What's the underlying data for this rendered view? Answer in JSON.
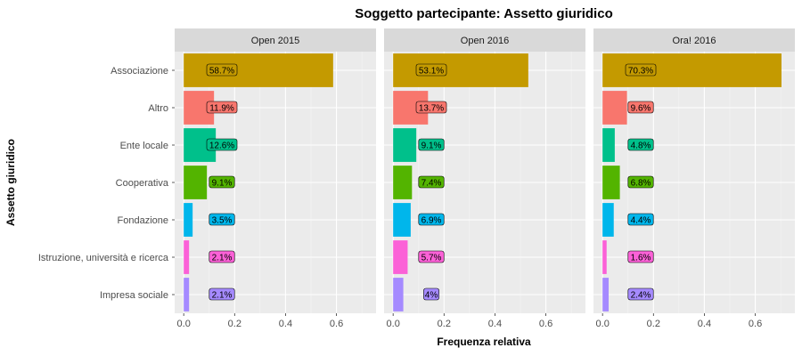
{
  "chart_data": {
    "type": "bar",
    "orientation": "horizontal",
    "title": "Soggetto partecipante: Assetto giuridico",
    "xlabel": "Frequenza relativa",
    "ylabel": "Assetto giuridico",
    "xlim": [
      0,
      0.72
    ],
    "x_ticks": [
      "0.0",
      "0.2",
      "0.4",
      "0.6"
    ],
    "x_tick_values": [
      0,
      0.2,
      0.4,
      0.6
    ],
    "grid": true,
    "legend": "none",
    "categories": [
      "Associazione",
      "Altro",
      "Ente locale",
      "Cooperativa",
      "Fondazione",
      "Istruzione, università e ricerca",
      "Impresa sociale"
    ],
    "colors": [
      "#C49A00",
      "#F8766D",
      "#00C08B",
      "#53B400",
      "#00B6EB",
      "#FB61D7",
      "#A58AFF"
    ],
    "panels": [
      {
        "name": "Open 2015",
        "values": [
          0.587,
          0.119,
          0.126,
          0.091,
          0.035,
          0.021,
          0.021
        ],
        "labels": [
          "58.7%",
          "11.9%",
          "12.6%",
          "9.1%",
          "3.5%",
          "2.1%",
          "2.1%"
        ]
      },
      {
        "name": "Open 2016",
        "values": [
          0.531,
          0.137,
          0.091,
          0.074,
          0.069,
          0.057,
          0.04
        ],
        "labels": [
          "53.1%",
          "13.7%",
          "9.1%",
          "7.4%",
          "6.9%",
          "5.7%",
          "4%"
        ]
      },
      {
        "name": "Ora! 2016",
        "values": [
          0.703,
          0.096,
          0.048,
          0.068,
          0.044,
          0.016,
          0.024
        ],
        "labels": [
          "70.3%",
          "9.6%",
          "4.8%",
          "6.8%",
          "4.4%",
          "1.6%",
          "2.4%"
        ]
      }
    ]
  }
}
